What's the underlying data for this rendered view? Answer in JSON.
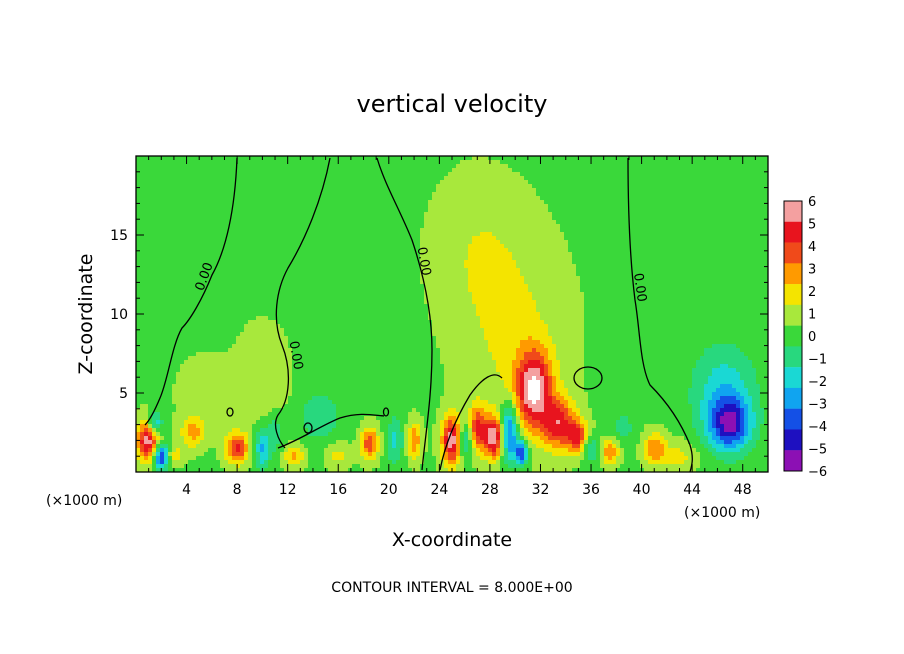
{
  "chart_data": {
    "type": "contour",
    "title": "vertical velocity",
    "xlabel": "X-coordinate",
    "ylabel": "Z-coordinate",
    "x_unit_label_left": "(×1000 m)",
    "x_unit_label_right": "(×1000 m)",
    "xlim": [
      0,
      50
    ],
    "ylim": [
      0,
      20
    ],
    "x_ticks": [
      4,
      8,
      12,
      16,
      20,
      24,
      28,
      32,
      36,
      40,
      44,
      48
    ],
    "y_ticks": [
      5,
      10,
      15
    ],
    "colorbar": {
      "levels": [
        6,
        5,
        4,
        3,
        2,
        1,
        0,
        -1,
        -2,
        -3,
        -4,
        -5,
        -6
      ],
      "colors": [
        "#f4a0a0",
        "#e8141e",
        "#f04a1a",
        "#ff9a00",
        "#f4e400",
        "#a8e83c",
        "#3ad83a",
        "#28d87e",
        "#1ad8d4",
        "#10a4f0",
        "#1450e6",
        "#1e10c0",
        "#8c10b4"
      ]
    },
    "contour_labels": [
      "0.00",
      "0.00",
      "0.00",
      "0.00"
    ],
    "footer": "CONTOUR INTERVAL = 8.000E+00",
    "features": [
      {
        "x": 31.5,
        "z": 5.2,
        "value": 6,
        "sx": 1.4,
        "sz": 2.4
      },
      {
        "x": 33.5,
        "z": 3.0,
        "value": 4.5,
        "sx": 1.3,
        "sz": 1.6
      },
      {
        "x": 30.0,
        "z": 8.5,
        "value": 1.4,
        "sx": 4.0,
        "sz": 6.0
      },
      {
        "x": 27.0,
        "z": 14.0,
        "value": 1.0,
        "sx": 3.5,
        "sz": 4.5
      },
      {
        "x": 8.0,
        "z": 1.5,
        "value": 4.5,
        "sx": 0.9,
        "sz": 1.0
      },
      {
        "x": 1.0,
        "z": 2.0,
        "value": 6,
        "sx": 0.9,
        "sz": 1.3
      },
      {
        "x": 2.0,
        "z": 1.0,
        "value": -6,
        "sx": 0.6,
        "sz": 0.8
      },
      {
        "x": 1.5,
        "z": 3.0,
        "value": -4,
        "sx": 0.6,
        "sz": 0.8
      },
      {
        "x": 25.0,
        "z": 2.0,
        "value": 6,
        "sx": 0.8,
        "sz": 1.5
      },
      {
        "x": 26.0,
        "z": 2.0,
        "value": -3,
        "sx": 0.6,
        "sz": 1.2
      },
      {
        "x": 27.0,
        "z": 2.8,
        "value": 4,
        "sx": 0.7,
        "sz": 1.4
      },
      {
        "x": 28.3,
        "z": 2.2,
        "value": 6,
        "sx": 0.8,
        "sz": 1.3
      },
      {
        "x": 29.5,
        "z": 2.5,
        "value": -5,
        "sx": 0.7,
        "sz": 1.8
      },
      {
        "x": 30.5,
        "z": 1.2,
        "value": -5,
        "sx": 0.5,
        "sz": 0.8
      },
      {
        "x": 35.0,
        "z": 2.2,
        "value": 4,
        "sx": 0.8,
        "sz": 1.0
      },
      {
        "x": 36.0,
        "z": 1.5,
        "value": -2.5,
        "sx": 0.7,
        "sz": 0.8
      },
      {
        "x": 37.5,
        "z": 1.3,
        "value": 3,
        "sx": 0.8,
        "sz": 0.8
      },
      {
        "x": 41.0,
        "z": 1.5,
        "value": 3,
        "sx": 0.9,
        "sz": 1.0
      },
      {
        "x": 38.5,
        "z": 2.8,
        "value": -1.2,
        "sx": 1.0,
        "sz": 1.2
      },
      {
        "x": 47.0,
        "z": 3.0,
        "value": -5,
        "sx": 1.6,
        "sz": 1.6
      },
      {
        "x": 46.5,
        "z": 5.0,
        "value": -2.5,
        "sx": 2.5,
        "sz": 3.0
      },
      {
        "x": 10.0,
        "z": 1.5,
        "value": -3,
        "sx": 0.6,
        "sz": 1.3
      },
      {
        "x": 11.0,
        "z": 2.5,
        "value": -1.5,
        "sx": 0.6,
        "sz": 1.3
      },
      {
        "x": 14.5,
        "z": 3.5,
        "value": -1.8,
        "sx": 1.5,
        "sz": 1.5
      },
      {
        "x": 18.5,
        "z": 1.8,
        "value": 4,
        "sx": 0.7,
        "sz": 1.0
      },
      {
        "x": 20.5,
        "z": 2.0,
        "value": -2,
        "sx": 0.7,
        "sz": 1.5
      },
      {
        "x": 22.0,
        "z": 2.0,
        "value": 3.0,
        "sx": 0.6,
        "sz": 1.2
      },
      {
        "x": 4.5,
        "z": 2.5,
        "value": 2.5,
        "sx": 1.0,
        "sz": 1.0
      },
      {
        "x": 5.5,
        "z": 5.0,
        "value": 1.0,
        "sx": 2.0,
        "sz": 2.0
      },
      {
        "x": 10.0,
        "z": 6.0,
        "value": 1.0,
        "sx": 2.0,
        "sz": 3.0
      },
      {
        "x": 3.0,
        "z": 1.0,
        "value": 2.0,
        "sx": 0.8,
        "sz": 0.6
      },
      {
        "x": 12.5,
        "z": 1.0,
        "value": 2.5,
        "sx": 0.8,
        "sz": 0.7
      },
      {
        "x": 43.0,
        "z": 1.0,
        "value": 1.5,
        "sx": 1.5,
        "sz": 1.0
      },
      {
        "x": 16.0,
        "z": 1.0,
        "value": 1.5,
        "sx": 1.0,
        "sz": 0.8
      }
    ]
  }
}
